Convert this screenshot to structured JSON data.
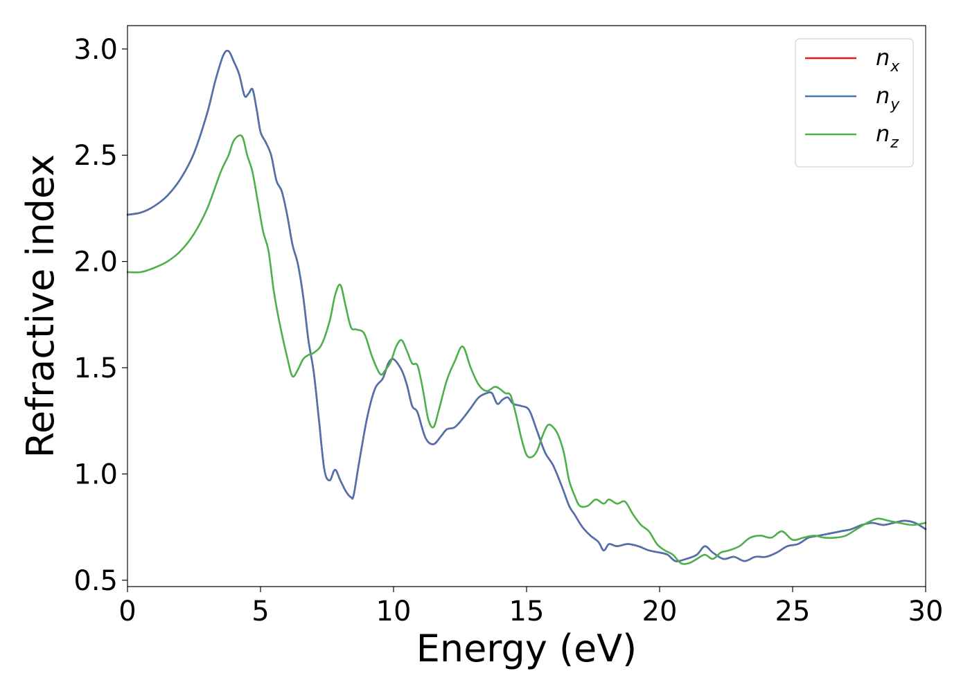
{
  "chart_data": {
    "type": "line",
    "title": "",
    "xlabel": "Energy (eV)",
    "ylabel": "Refractive index",
    "xlim": [
      0,
      30
    ],
    "ylim": [
      0.47,
      3.11
    ],
    "x_ticks": [
      0,
      5,
      10,
      15,
      20,
      25,
      30
    ],
    "x_tick_labels": [
      "0",
      "5",
      "10",
      "15",
      "20",
      "25",
      "30"
    ],
    "y_ticks": [
      0.5,
      1.0,
      1.5,
      2.0,
      2.5,
      3.0
    ],
    "y_tick_labels": [
      "0.5",
      "1.0",
      "1.5",
      "2.0",
      "2.5",
      "3.0"
    ],
    "grid": false,
    "legend_position": "top-right",
    "series": [
      {
        "name": "n",
        "subscript": "x",
        "color": "#e41a1c",
        "x": [
          0,
          0.5,
          1,
          1.5,
          2,
          2.5,
          3,
          3.3,
          3.6,
          3.8,
          4.0,
          4.2,
          4.4,
          4.55,
          4.7,
          4.85,
          5.0,
          5.2,
          5.4,
          5.6,
          5.8,
          6.0,
          6.2,
          6.4,
          6.6,
          6.8,
          7.0,
          7.2,
          7.4,
          7.6,
          7.8,
          8.0,
          8.2,
          8.4,
          8.5,
          8.7,
          9.0,
          9.3,
          9.6,
          9.8,
          10.0,
          10.3,
          10.5,
          10.7,
          10.9,
          11.2,
          11.5,
          11.8,
          12.0,
          12.3,
          12.6,
          12.9,
          13.2,
          13.5,
          13.7,
          13.9,
          14.1,
          14.3,
          14.5,
          14.8,
          15.1,
          15.4,
          15.7,
          16.0,
          16.3,
          16.6,
          16.8,
          17.1,
          17.4,
          17.7,
          17.9,
          18.1,
          18.4,
          18.8,
          19.2,
          19.6,
          20.0,
          20.3,
          20.6,
          21.0,
          21.4,
          21.7,
          22.0,
          22.4,
          22.8,
          23.2,
          23.6,
          24.0,
          24.4,
          24.8,
          25.2,
          25.6,
          26.0,
          26.4,
          26.8,
          27.2,
          27.6,
          28.0,
          28.4,
          28.8,
          29.2,
          29.6,
          30.0
        ],
        "values": [
          2.22,
          2.23,
          2.26,
          2.31,
          2.39,
          2.51,
          2.7,
          2.85,
          2.97,
          2.99,
          2.94,
          2.88,
          2.78,
          2.79,
          2.81,
          2.72,
          2.61,
          2.56,
          2.5,
          2.38,
          2.33,
          2.22,
          2.08,
          1.99,
          1.84,
          1.63,
          1.48,
          1.25,
          1.02,
          0.97,
          1.02,
          0.97,
          0.92,
          0.89,
          0.9,
          1.05,
          1.26,
          1.4,
          1.45,
          1.52,
          1.54,
          1.49,
          1.42,
          1.32,
          1.29,
          1.17,
          1.14,
          1.18,
          1.21,
          1.22,
          1.26,
          1.31,
          1.36,
          1.38,
          1.38,
          1.33,
          1.35,
          1.36,
          1.33,
          1.32,
          1.3,
          1.2,
          1.1,
          1.04,
          0.95,
          0.85,
          0.81,
          0.75,
          0.71,
          0.68,
          0.64,
          0.67,
          0.66,
          0.67,
          0.66,
          0.64,
          0.63,
          0.62,
          0.59,
          0.6,
          0.62,
          0.66,
          0.63,
          0.6,
          0.61,
          0.59,
          0.61,
          0.61,
          0.63,
          0.66,
          0.67,
          0.7,
          0.71,
          0.72,
          0.73,
          0.74,
          0.76,
          0.77,
          0.76,
          0.77,
          0.78,
          0.77,
          0.74
        ]
      },
      {
        "name": "n",
        "subscript": "y",
        "color": "#4c72b0",
        "x": [
          0,
          0.5,
          1,
          1.5,
          2,
          2.5,
          3,
          3.3,
          3.6,
          3.8,
          4.0,
          4.2,
          4.4,
          4.55,
          4.7,
          4.85,
          5.0,
          5.2,
          5.4,
          5.6,
          5.8,
          6.0,
          6.2,
          6.4,
          6.6,
          6.8,
          7.0,
          7.2,
          7.4,
          7.6,
          7.8,
          8.0,
          8.2,
          8.4,
          8.5,
          8.7,
          9.0,
          9.3,
          9.6,
          9.8,
          10.0,
          10.3,
          10.5,
          10.7,
          10.9,
          11.2,
          11.5,
          11.8,
          12.0,
          12.3,
          12.6,
          12.9,
          13.2,
          13.5,
          13.7,
          13.9,
          14.1,
          14.3,
          14.5,
          14.8,
          15.1,
          15.4,
          15.7,
          16.0,
          16.3,
          16.6,
          16.8,
          17.1,
          17.4,
          17.7,
          17.9,
          18.1,
          18.4,
          18.8,
          19.2,
          19.6,
          20.0,
          20.3,
          20.6,
          21.0,
          21.4,
          21.7,
          22.0,
          22.4,
          22.8,
          23.2,
          23.6,
          24.0,
          24.4,
          24.8,
          25.2,
          25.6,
          26.0,
          26.4,
          26.8,
          27.2,
          27.6,
          28.0,
          28.4,
          28.8,
          29.2,
          29.6,
          30.0
        ],
        "values": [
          2.22,
          2.23,
          2.26,
          2.31,
          2.39,
          2.51,
          2.7,
          2.85,
          2.97,
          2.99,
          2.94,
          2.88,
          2.78,
          2.79,
          2.81,
          2.72,
          2.61,
          2.56,
          2.5,
          2.38,
          2.33,
          2.22,
          2.08,
          1.99,
          1.84,
          1.63,
          1.48,
          1.25,
          1.02,
          0.97,
          1.02,
          0.97,
          0.92,
          0.89,
          0.9,
          1.05,
          1.26,
          1.4,
          1.45,
          1.52,
          1.54,
          1.49,
          1.42,
          1.32,
          1.29,
          1.17,
          1.14,
          1.18,
          1.21,
          1.22,
          1.26,
          1.31,
          1.36,
          1.38,
          1.38,
          1.33,
          1.35,
          1.36,
          1.33,
          1.32,
          1.3,
          1.2,
          1.1,
          1.04,
          0.95,
          0.85,
          0.81,
          0.75,
          0.71,
          0.68,
          0.64,
          0.67,
          0.66,
          0.67,
          0.66,
          0.64,
          0.63,
          0.62,
          0.59,
          0.6,
          0.62,
          0.66,
          0.63,
          0.6,
          0.61,
          0.59,
          0.61,
          0.61,
          0.63,
          0.66,
          0.67,
          0.7,
          0.71,
          0.72,
          0.73,
          0.74,
          0.76,
          0.77,
          0.76,
          0.77,
          0.78,
          0.77,
          0.74
        ]
      },
      {
        "name": "n",
        "subscript": "z",
        "color": "#4daf4a",
        "x": [
          0,
          0.5,
          1,
          1.5,
          2,
          2.5,
          3,
          3.5,
          3.8,
          4.0,
          4.3,
          4.5,
          4.7,
          4.9,
          5.1,
          5.3,
          5.5,
          5.7,
          6.0,
          6.2,
          6.4,
          6.6,
          6.8,
          7.0,
          7.3,
          7.6,
          7.8,
          8.0,
          8.2,
          8.4,
          8.6,
          8.9,
          9.2,
          9.5,
          9.7,
          9.9,
          10.1,
          10.3,
          10.5,
          10.7,
          10.9,
          11.1,
          11.3,
          11.5,
          11.7,
          12.0,
          12.3,
          12.6,
          12.9,
          13.2,
          13.5,
          13.8,
          14.0,
          14.2,
          14.4,
          14.6,
          14.8,
          15.0,
          15.2,
          15.4,
          15.6,
          15.8,
          16.0,
          16.2,
          16.4,
          16.6,
          16.8,
          17.0,
          17.3,
          17.6,
          17.9,
          18.1,
          18.4,
          18.7,
          19.0,
          19.3,
          19.6,
          19.9,
          20.2,
          20.5,
          20.8,
          21.1,
          21.4,
          21.7,
          22.0,
          22.3,
          22.6,
          23.0,
          23.4,
          23.8,
          24.2,
          24.6,
          25.0,
          25.4,
          25.8,
          26.2,
          26.6,
          27.0,
          27.4,
          27.8,
          28.2,
          28.6,
          29.0,
          29.5,
          30.0
        ],
        "values": [
          1.95,
          1.95,
          1.97,
          2.0,
          2.05,
          2.13,
          2.25,
          2.42,
          2.5,
          2.57,
          2.59,
          2.5,
          2.42,
          2.28,
          2.14,
          2.05,
          1.86,
          1.72,
          1.55,
          1.46,
          1.49,
          1.54,
          1.56,
          1.57,
          1.61,
          1.72,
          1.84,
          1.89,
          1.79,
          1.69,
          1.68,
          1.66,
          1.55,
          1.47,
          1.49,
          1.53,
          1.6,
          1.63,
          1.58,
          1.52,
          1.51,
          1.4,
          1.26,
          1.22,
          1.3,
          1.44,
          1.53,
          1.6,
          1.5,
          1.42,
          1.39,
          1.41,
          1.4,
          1.38,
          1.37,
          1.28,
          1.17,
          1.09,
          1.08,
          1.11,
          1.18,
          1.23,
          1.22,
          1.18,
          1.1,
          0.97,
          0.9,
          0.85,
          0.85,
          0.88,
          0.86,
          0.88,
          0.86,
          0.87,
          0.81,
          0.76,
          0.73,
          0.67,
          0.64,
          0.62,
          0.58,
          0.58,
          0.6,
          0.62,
          0.6,
          0.63,
          0.64,
          0.66,
          0.7,
          0.71,
          0.7,
          0.73,
          0.69,
          0.7,
          0.71,
          0.7,
          0.7,
          0.71,
          0.74,
          0.77,
          0.79,
          0.78,
          0.77,
          0.76,
          0.77
        ]
      }
    ]
  }
}
